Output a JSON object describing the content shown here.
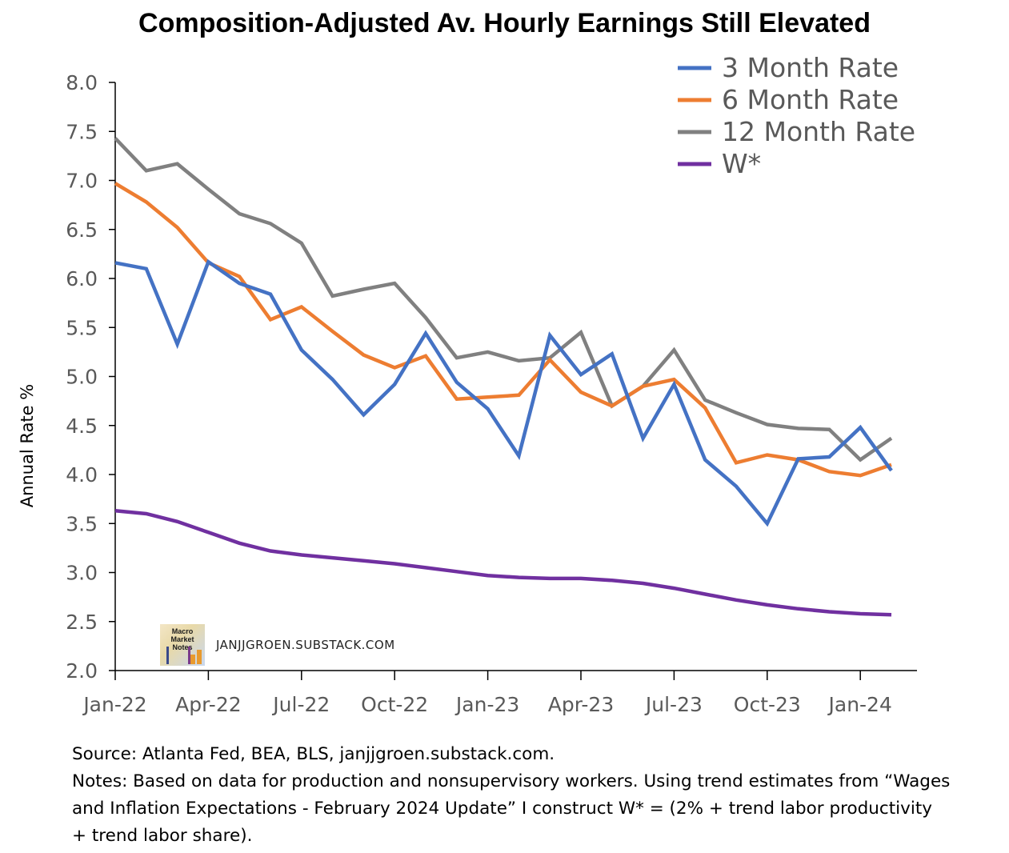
{
  "title": "Composition-Adjusted Av. Hourly Earnings Still Elevated",
  "footnotes": {
    "source": "Source: Atlanta Fed, BEA, BLS, janjjgroen.substack.com.",
    "notes_line1": "Notes: Based on data for production and nonsupervisory workers. Using trend estimates from “Wages",
    "notes_line2": "and Inflation Expectations - February 2024 Update” I construct W* = (2% + trend labor productivity",
    "notes_line3": "+ trend labor share)."
  },
  "watermark": {
    "logo_text": "Macro Market Notes",
    "site": "JANJJGROEN.SUBSTACK.COM"
  },
  "chart_data": {
    "type": "line",
    "title": "Composition-Adjusted Av. Hourly Earnings Still Elevated",
    "xlabel": "",
    "ylabel": "Annual Rate %",
    "ylim": [
      2.0,
      8.0
    ],
    "yticks": [
      "2.0",
      "2.5",
      "3.0",
      "3.5",
      "4.0",
      "4.5",
      "5.0",
      "5.5",
      "6.0",
      "6.5",
      "7.0",
      "7.5",
      "8.0"
    ],
    "xtick_labels": [
      "Jan-22",
      "Apr-22",
      "Jul-22",
      "Oct-22",
      "Jan-23",
      "Apr-23",
      "Jul-23",
      "Oct-23",
      "Jan-24"
    ],
    "x": [
      "Jan-22",
      "Feb-22",
      "Mar-22",
      "Apr-22",
      "May-22",
      "Jun-22",
      "Jul-22",
      "Aug-22",
      "Sep-22",
      "Oct-22",
      "Nov-22",
      "Dec-22",
      "Jan-23",
      "Feb-23",
      "Mar-23",
      "Apr-23",
      "May-23",
      "Jun-23",
      "Jul-23",
      "Aug-23",
      "Sep-23",
      "Oct-23",
      "Nov-23",
      "Dec-23",
      "Jan-24",
      "Feb-24"
    ],
    "grid": false,
    "legend_position": "top-right",
    "series": [
      {
        "name": "3 Month Rate",
        "color": "#4472C4",
        "values": [
          6.16,
          6.1,
          5.33,
          6.17,
          5.95,
          5.84,
          5.27,
          4.97,
          4.61,
          4.92,
          5.44,
          4.94,
          4.67,
          4.19,
          5.42,
          5.02,
          5.23,
          4.37,
          4.92,
          4.15,
          3.88,
          3.5,
          4.16,
          4.18,
          4.48,
          4.04
        ]
      },
      {
        "name": "6 Month Rate",
        "color": "#ED7D31",
        "values": [
          6.97,
          6.78,
          6.52,
          6.16,
          6.02,
          5.58,
          5.71,
          5.46,
          5.22,
          5.09,
          5.21,
          4.77,
          4.79,
          4.81,
          5.17,
          4.84,
          4.7,
          4.9,
          4.97,
          4.68,
          4.12,
          4.2,
          4.15,
          4.03,
          3.99,
          4.1
        ]
      },
      {
        "name": "12 Month Rate",
        "color": "#808080",
        "values": [
          7.43,
          7.1,
          7.17,
          6.91,
          6.66,
          6.56,
          6.36,
          5.82,
          5.89,
          5.95,
          5.6,
          5.19,
          5.25,
          5.16,
          5.19,
          5.45,
          4.7,
          4.9,
          5.27,
          4.76,
          4.63,
          4.51,
          4.47,
          4.46,
          4.15,
          4.37
        ]
      },
      {
        "name": "W*",
        "color": "#7030A0",
        "values": [
          3.63,
          3.6,
          3.52,
          3.41,
          3.3,
          3.22,
          3.18,
          3.15,
          3.12,
          3.09,
          3.05,
          3.01,
          2.97,
          2.95,
          2.94,
          2.94,
          2.92,
          2.89,
          2.84,
          2.78,
          2.72,
          2.67,
          2.63,
          2.6,
          2.58,
          2.57
        ]
      }
    ]
  }
}
